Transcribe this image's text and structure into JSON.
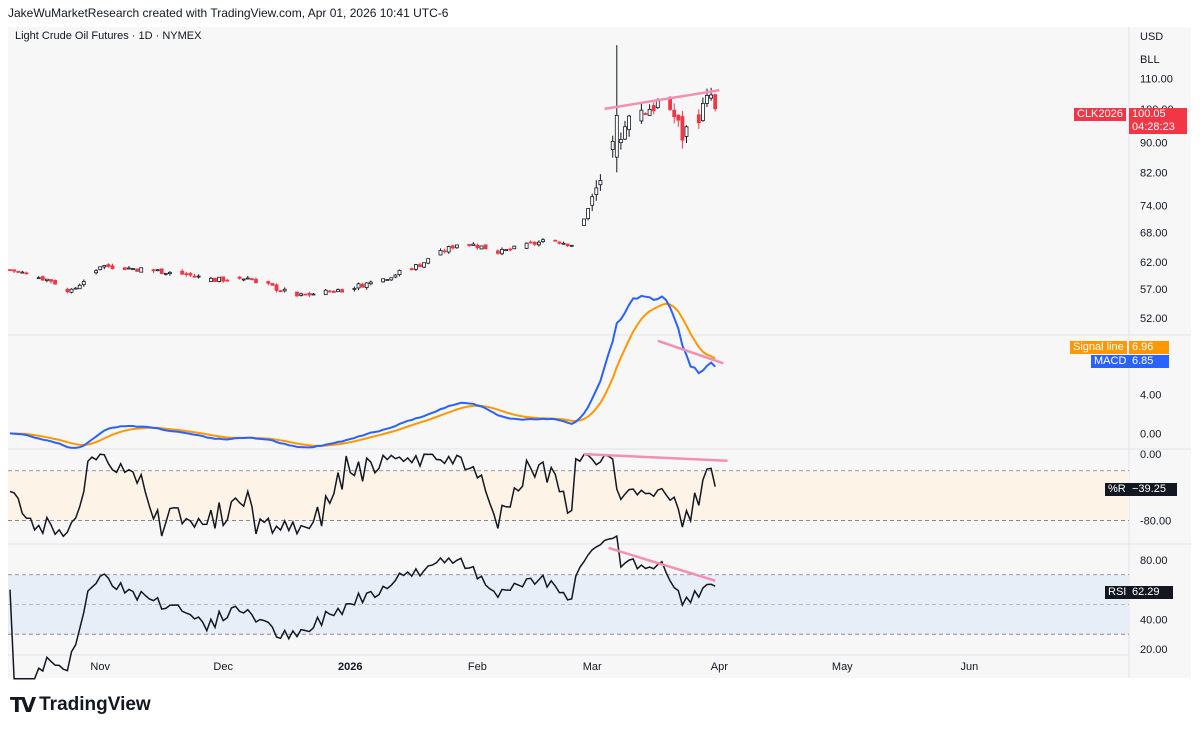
{
  "header": {
    "attribution": "JakeWuMarketResearch created with TradingView.com, Apr 01, 2026 10:41 UTC-6"
  },
  "symbol_title": "Light Crude Oil Futures · 1D · NYMEX",
  "scale": {
    "currency": "USD",
    "unit": "BLL"
  },
  "brand": {
    "name": "TradingView",
    "mark": "TV"
  },
  "colors": {
    "up": "#131722",
    "down": "#f23645",
    "macd": "#2962ff",
    "signal": "#ff9800",
    "divergence": "#f48fb1",
    "willr_bg": "#fdf3e6",
    "rsi_bg": "#e8eef7"
  },
  "price_tag": {
    "symbol": "CLK2026",
    "price": "100.05",
    "countdown": "04:28:23"
  },
  "macd_tags": {
    "signal_label": "Signal line",
    "signal_value": "6.96",
    "macd_label": "MACD",
    "macd_value": "6.85"
  },
  "willr_tag": {
    "label": "%R",
    "value": "−39.25"
  },
  "rsi_tag": {
    "label": "RSI",
    "value": "62.29"
  },
  "chart_data": {
    "type": "candlestick",
    "title": "Light Crude Oil Futures · 1D · NYMEX",
    "x_labels": [
      {
        "label": "Nov",
        "day": 22
      },
      {
        "label": "Dec",
        "day": 52
      },
      {
        "label": "2026",
        "day": 83
      },
      {
        "label": "Feb",
        "day": 114
      },
      {
        "label": "Mar",
        "day": 142
      },
      {
        "label": "Apr",
        "day": 173
      },
      {
        "label": "May",
        "day": 203
      },
      {
        "label": "Jun",
        "day": 234
      }
    ],
    "last_day": 172,
    "price_axis": {
      "ticks": [
        "110.00",
        "100.00",
        "90.00",
        "82.00",
        "74.00",
        "68.00",
        "62.00",
        "57.00",
        "52.00"
      ],
      "log": true,
      "range": [
        49.5,
        124
      ]
    },
    "candles_anchor": [
      [
        0,
        60.5
      ],
      [
        10,
        58.5
      ],
      [
        15,
        56.5
      ],
      [
        22,
        61.3
      ],
      [
        40,
        60.0
      ],
      [
        50,
        58.6
      ],
      [
        58,
        59.0
      ],
      [
        70,
        55.7
      ],
      [
        82,
        57.0
      ],
      [
        90,
        58.5
      ],
      [
        100,
        61.5
      ],
      [
        110,
        66.0
      ],
      [
        120,
        64.0
      ],
      [
        132,
        66.5
      ],
      [
        137,
        65.5
      ],
      [
        142,
        75.0
      ],
      [
        148,
        91.5
      ],
      [
        152,
        98.0
      ],
      [
        160,
        103.0
      ],
      [
        164,
        92.0
      ],
      [
        168,
        98.0
      ],
      [
        171,
        104.0
      ],
      [
        172,
        100.05
      ]
    ],
    "candles_notable": [
      {
        "day": 148,
        "high": 122.0,
        "low": 82.0,
        "note": "spike"
      }
    ],
    "panels": {
      "macd": {
        "ticks": [
          "4.00",
          "0.00"
        ],
        "range": [
          -1.5,
          10.0
        ],
        "last_macd": 6.85,
        "last_signal": 6.96
      },
      "williams_r": {
        "ticks": [
          "0.00",
          "-80.00"
        ],
        "bands": [
          -20,
          -80
        ],
        "range": [
          -107,
          5
        ],
        "last": -39.25
      },
      "rsi": {
        "ticks": [
          "80.00",
          "40.00",
          "20.00"
        ],
        "bands": [
          70,
          30
        ],
        "range": [
          16,
          90
        ],
        "last": 62.29
      }
    },
    "divergence_lines": [
      {
        "panel": "price",
        "from": [
          145,
          100.0
        ],
        "to": [
          173,
          106.0
        ]
      },
      {
        "panel": "macd",
        "from": [
          158,
          9.5
        ],
        "to": [
          174,
          7.2
        ]
      },
      {
        "panel": "williams_r",
        "from": [
          140,
          0
        ],
        "to": [
          175,
          -8
        ]
      },
      {
        "panel": "rsi",
        "from": [
          146,
          88
        ],
        "to": [
          172,
          66
        ]
      }
    ]
  }
}
